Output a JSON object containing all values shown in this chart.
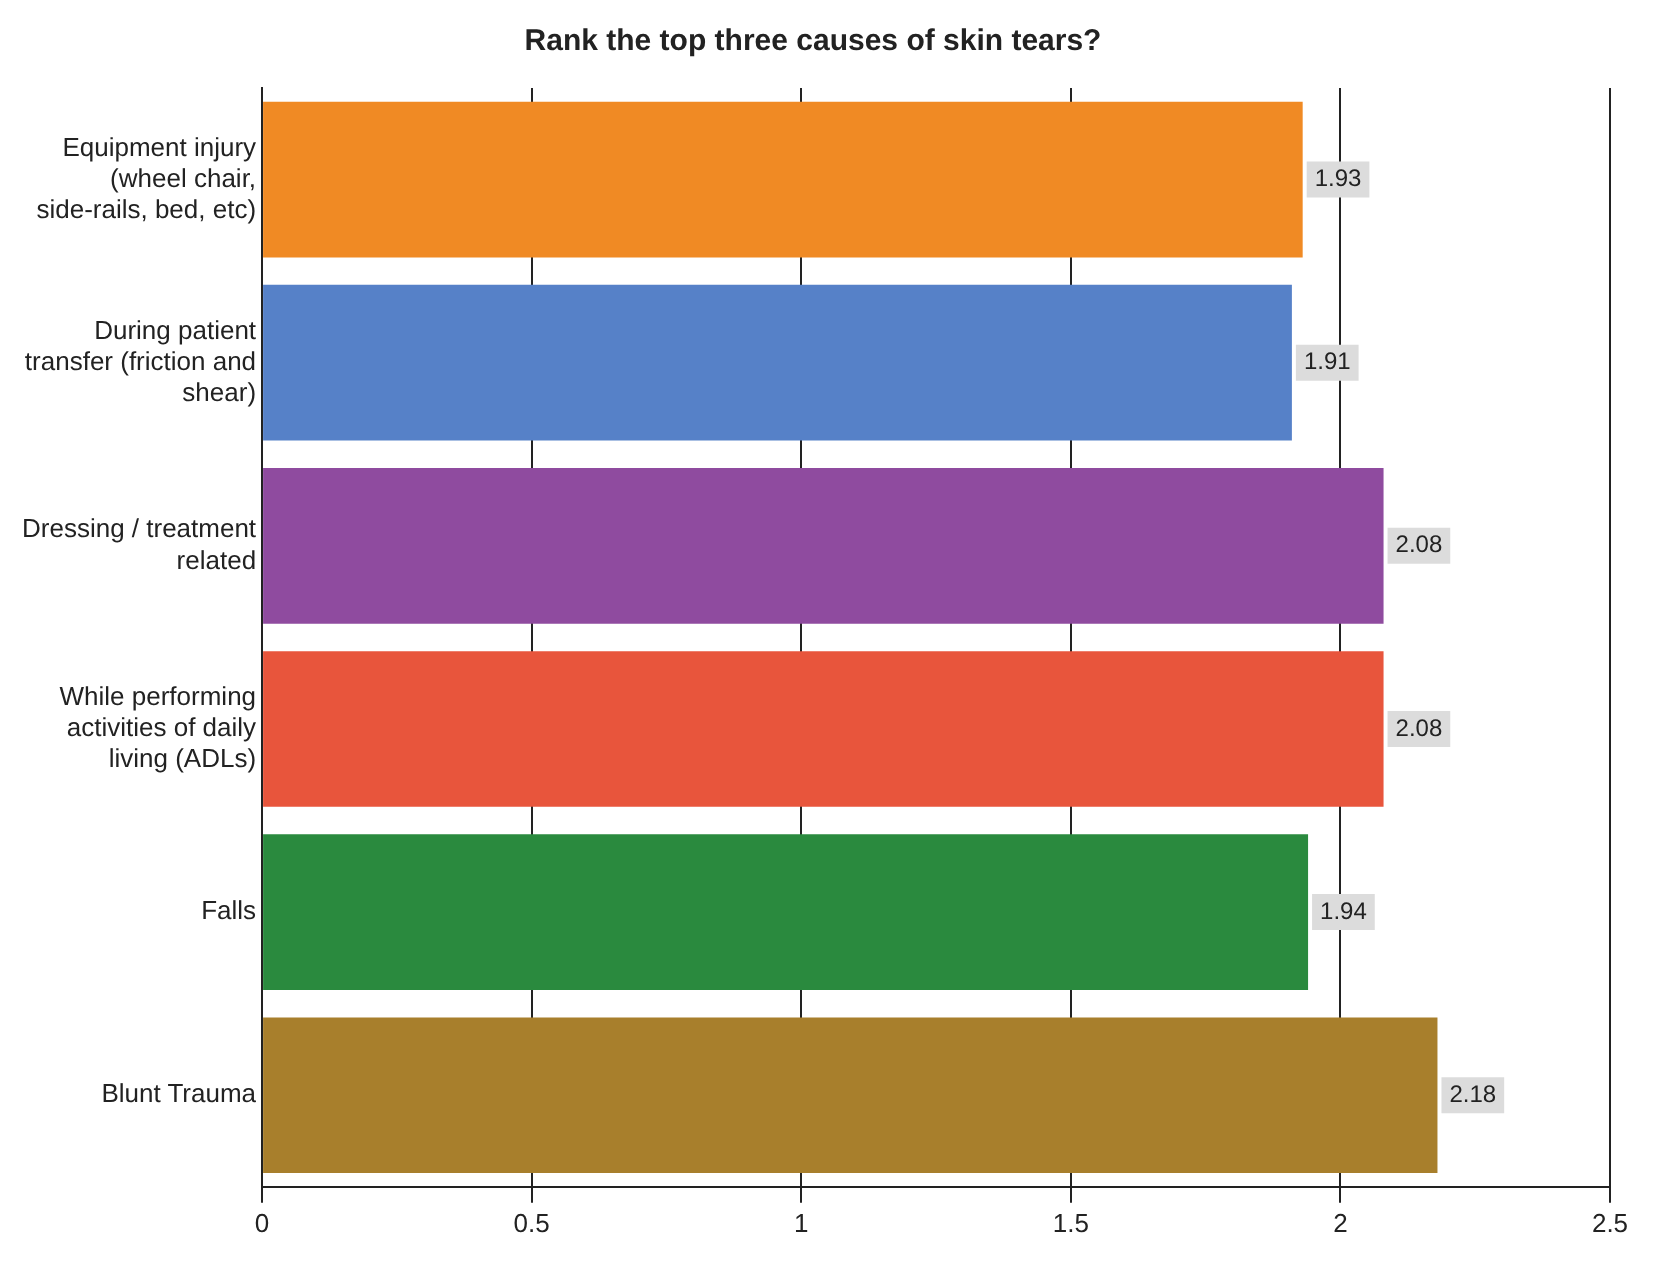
{
  "chart_data": {
    "type": "bar",
    "orientation": "horizontal",
    "title": "Rank the top three causes of skin tears?",
    "categories": [
      "Equipment injury (wheel chair, side-rails, bed, etc)",
      "During patient transfer (friction and shear)",
      "Dressing / treatment related",
      "While performing activities of daily living (ADLs)",
      "Falls",
      "Blunt Trauma"
    ],
    "values": [
      1.93,
      1.91,
      2.08,
      2.08,
      1.94,
      2.18
    ],
    "colors": [
      "#f08a24",
      "#5681c8",
      "#8f4b9f",
      "#e8553c",
      "#2a8a3e",
      "#a87f2c"
    ],
    "xlim": [
      0,
      2.5
    ],
    "xticks": [
      0,
      0.5,
      1,
      1.5,
      2,
      2.5
    ],
    "grid": "x",
    "data_labels": true,
    "legend": false
  }
}
